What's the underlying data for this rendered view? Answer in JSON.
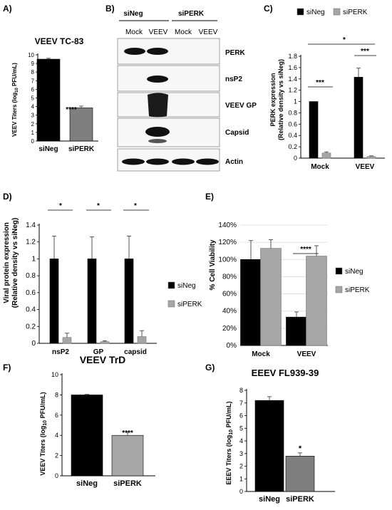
{
  "panels": {
    "A": {
      "letter": "A)",
      "title": "VEEV  TC-83",
      "ylabel": "VEEV Titers (log",
      "ylabel_sub": "10",
      "ylabel_end": " PFU/mL)",
      "sig": "****"
    },
    "B": {
      "letter": "B)",
      "groups": [
        "siNeg",
        "siPERK"
      ],
      "lanes": [
        "Mock",
        "VEEV",
        "Mock",
        "VEEV"
      ],
      "blots": [
        "PERK",
        "nsP2",
        "VEEV GP",
        "Capsid",
        "Actin"
      ],
      "band_levels": [
        [
          1,
          1,
          0,
          0
        ],
        [
          0,
          1,
          0,
          0
        ],
        [
          0,
          1,
          0,
          0
        ],
        [
          0,
          1,
          0,
          0
        ],
        [
          1,
          1,
          1,
          1
        ]
      ]
    },
    "C": {
      "letter": "C)",
      "ylabel_line1": "PERK expression",
      "ylabel_line2": "(Relative density vs siNeg)",
      "sig_within": [
        "***",
        "***"
      ],
      "sig_between": "*"
    },
    "D": {
      "letter": "D)",
      "ylabel_line1": "Viral protein expression",
      "ylabel_line2": "(Relative density vs siNeg)",
      "sig": [
        "*",
        "*",
        "*"
      ]
    },
    "E": {
      "letter": "E)",
      "ylabel": "% Cell Viability",
      "sig": "****"
    },
    "F": {
      "letter": "F)",
      "title": "VEEV TrD",
      "ylabel": "VEEV Titers (log",
      "ylabel_sub": "10",
      "ylabel_end": " PFU/mL)",
      "sig": "****"
    },
    "G": {
      "letter": "G)",
      "title": "EEEV FL939-39",
      "ylabel": "EEEV Titers (log",
      "ylabel_sub": "10",
      "ylabel_end": " PFU/mL)",
      "sig": "*"
    }
  },
  "colors": {
    "siNeg": "#000000",
    "siPERK": "#a6a6a6",
    "siPERK_dark": "#7f7f7f",
    "grid": "#d9d9d9"
  },
  "chart_data": [
    {
      "panel": "A",
      "type": "bar",
      "categories": [
        "siNeg",
        "siPERK"
      ],
      "values": [
        9.5,
        3.85
      ],
      "errors": [
        0.1,
        0.2
      ],
      "ylim": [
        0,
        10
      ],
      "yticks": [
        "0",
        "1",
        "2",
        "3",
        "4",
        "5",
        "6",
        "7",
        "8",
        "9",
        "10"
      ]
    },
    {
      "panel": "C",
      "type": "bar",
      "categories": [
        "Mock",
        "VEEV"
      ],
      "series": [
        {
          "name": "siNeg",
          "values": [
            1.0,
            1.43
          ],
          "errors": [
            0,
            0.16
          ]
        },
        {
          "name": "siPERK",
          "values": [
            0.09,
            0.03
          ],
          "errors": [
            0.02,
            0.01
          ]
        }
      ],
      "ylim": [
        0,
        1.8
      ],
      "yticks": [
        "0",
        "0.2",
        "0.4",
        "0.6",
        "0.8",
        "1",
        "1.2",
        "1.4",
        "1.6",
        "1.8"
      ],
      "legend": "top"
    },
    {
      "panel": "D",
      "type": "bar",
      "categories": [
        "nsP2",
        "GP",
        "capsid"
      ],
      "series": [
        {
          "name": "siNeg",
          "values": [
            1.0,
            1.0,
            1.0
          ],
          "errors": [
            0.27,
            0.26,
            0.27
          ]
        },
        {
          "name": "siPERK",
          "values": [
            0.07,
            0.02,
            0.08
          ],
          "errors": [
            0.05,
            0.01,
            0.07
          ]
        }
      ],
      "ylim": [
        0,
        1.4
      ],
      "yticks": [
        "0",
        "0.2",
        "0.4",
        "0.6",
        "0.8",
        "1",
        "1.2",
        "1.4"
      ],
      "legend": "right"
    },
    {
      "panel": "E",
      "type": "bar",
      "categories": [
        "Mock",
        "VEEV"
      ],
      "series": [
        {
          "name": "siNeg",
          "values": [
            1.0,
            0.33
          ],
          "errors": [
            0.22,
            0.06
          ]
        },
        {
          "name": "siPERK",
          "values": [
            1.13,
            1.04
          ],
          "errors": [
            0.1,
            0.12
          ]
        }
      ],
      "ylim": [
        0,
        1.4
      ],
      "yticks": [
        "0%",
        "20%",
        "40%",
        "60%",
        "80%",
        "100%",
        "120%",
        "140%"
      ],
      "grid": true,
      "legend": "right"
    },
    {
      "panel": "F",
      "type": "bar",
      "categories": [
        "siNeg",
        "siPERK"
      ],
      "values": [
        8.0,
        4.0
      ],
      "errors": [
        0.05,
        0.3
      ],
      "ylim": [
        0,
        10
      ],
      "yticks": [
        "0",
        "2",
        "4",
        "6",
        "8",
        "10"
      ]
    },
    {
      "panel": "G",
      "type": "bar",
      "categories": [
        "siNeg",
        "siPERK"
      ],
      "values": [
        7.2,
        2.8
      ],
      "errors": [
        0.3,
        0.25
      ],
      "ylim": [
        0,
        8
      ],
      "yticks": [
        "0",
        "1",
        "2",
        "3",
        "4",
        "5",
        "6",
        "7",
        "8"
      ]
    }
  ]
}
